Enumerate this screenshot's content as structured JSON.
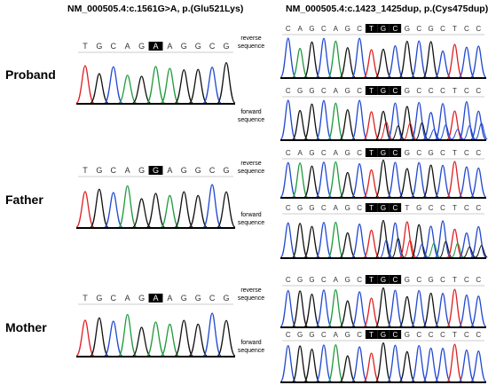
{
  "titles": {
    "left": "NM_000505.4:c.1561G>A, p.(Glu521Lys)",
    "right": "NM_000505.4:c.1423_1425dup, p.(Cys475dup)"
  },
  "individuals": [
    "Proband",
    "Father",
    "Mother"
  ],
  "orientation": {
    "reverse": [
      "reverse",
      "sequence"
    ],
    "forward": [
      "forward",
      "sequence"
    ]
  },
  "colors": {
    "A": "#1f9a3b",
    "T": "#e02020",
    "C": "#2048d0",
    "G": "#111111",
    "highlight": "#000000"
  },
  "left_panels": [
    {
      "bases": [
        "T",
        "G",
        "C",
        "A",
        "G",
        "A",
        "A",
        "G",
        "G",
        "C",
        "G"
      ],
      "highlight": [
        5
      ]
    },
    {
      "bases": [
        "T",
        "G",
        "C",
        "A",
        "G",
        "G",
        "A",
        "G",
        "G",
        "C",
        "G"
      ],
      "highlight": [
        5
      ]
    },
    {
      "bases": [
        "T",
        "G",
        "C",
        "A",
        "G",
        "A",
        "A",
        "G",
        "G",
        "C",
        "G"
      ],
      "highlight": [
        5
      ]
    }
  ],
  "right_panels": [
    {
      "orientation": "reverse",
      "bases": [
        "C",
        "A",
        "G",
        "C",
        "A",
        "G",
        "C",
        "T",
        "G",
        "C",
        "G",
        "C",
        "G",
        "C",
        "T",
        "C",
        "C"
      ],
      "highlight": [
        7,
        8,
        9
      ]
    },
    {
      "orientation": "forward",
      "bases": [
        "C",
        "G",
        "G",
        "C",
        "A",
        "G",
        "C",
        "T",
        "G",
        "C",
        "G",
        "C",
        "C",
        "C",
        "T",
        "C",
        "C"
      ],
      "highlight": [
        7,
        8,
        9
      ]
    },
    {
      "orientation": "reverse",
      "bases": [
        "C",
        "A",
        "G",
        "C",
        "A",
        "G",
        "C",
        "T",
        "G",
        "C",
        "G",
        "C",
        "G",
        "C",
        "T",
        "C",
        "C"
      ],
      "highlight": [
        7,
        8,
        9
      ]
    },
    {
      "orientation": "forward",
      "bases": [
        "C",
        "G",
        "G",
        "C",
        "A",
        "G",
        "C",
        "T",
        "G",
        "C",
        "T",
        "G",
        "C",
        "C",
        "T",
        "C",
        "C"
      ],
      "highlight": [
        7,
        8,
        9
      ]
    },
    {
      "orientation": "reverse",
      "bases": [
        "C",
        "G",
        "G",
        "C",
        "A",
        "G",
        "C",
        "T",
        "G",
        "C",
        "G",
        "C",
        "G",
        "C",
        "T",
        "C",
        "C"
      ],
      "highlight": [
        7,
        8,
        9
      ]
    },
    {
      "orientation": "forward",
      "bases": [
        "C",
        "G",
        "G",
        "C",
        "A",
        "G",
        "C",
        "T",
        "G",
        "C",
        "G",
        "C",
        "C",
        "C",
        "T",
        "C",
        "C"
      ],
      "highlight": [
        7,
        8,
        9
      ]
    }
  ]
}
